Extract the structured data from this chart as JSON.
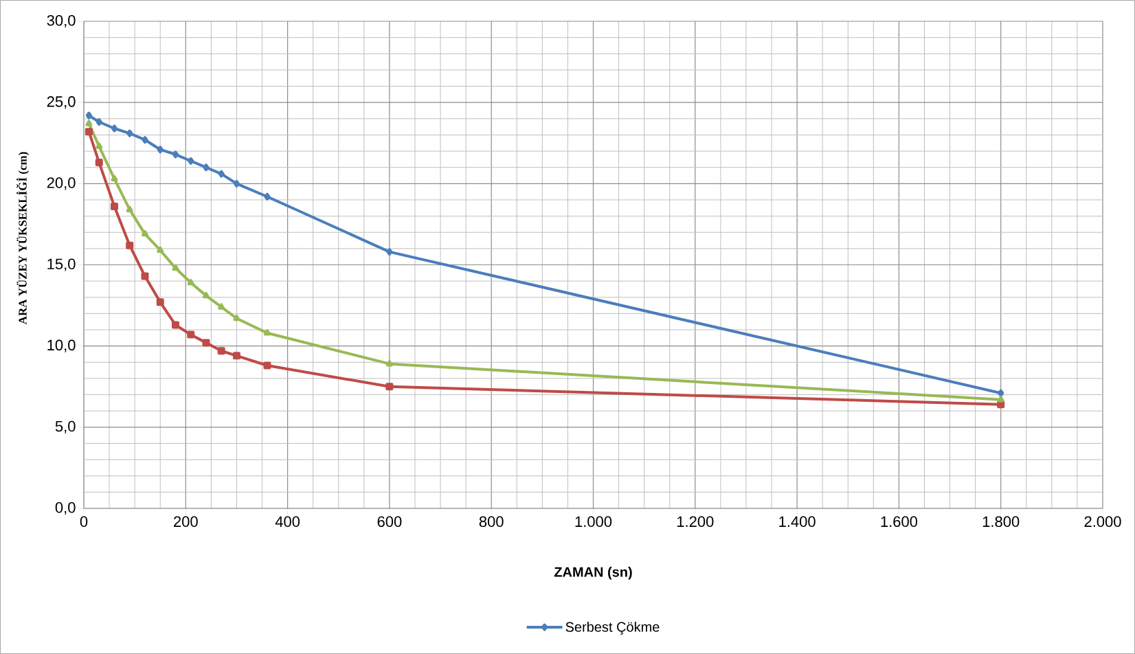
{
  "chart_data": {
    "type": "line",
    "xlabel": "ZAMAN (sn)",
    "ylabel": "ARA YÜZEY YÜKSEKLİĞİ (cm)",
    "xlim": [
      0,
      2000
    ],
    "ylim": [
      0,
      30
    ],
    "xticks": [
      {
        "value": 0,
        "label": "0"
      },
      {
        "value": 200,
        "label": "200"
      },
      {
        "value": 400,
        "label": "400"
      },
      {
        "value": 600,
        "label": "600"
      },
      {
        "value": 800,
        "label": "800"
      },
      {
        "value": 1000,
        "label": "1.000"
      },
      {
        "value": 1200,
        "label": "1.200"
      },
      {
        "value": 1400,
        "label": "1.400"
      },
      {
        "value": 1600,
        "label": "1.600"
      },
      {
        "value": 1800,
        "label": "1.800"
      },
      {
        "value": 2000,
        "label": "2.000"
      }
    ],
    "yticks": [
      {
        "value": 0,
        "label": "0,0"
      },
      {
        "value": 5,
        "label": "5,0"
      },
      {
        "value": 10,
        "label": "10,0"
      },
      {
        "value": 15,
        "label": "15,0"
      },
      {
        "value": 20,
        "label": "20,0"
      },
      {
        "value": 25,
        "label": "25,0"
      },
      {
        "value": 30,
        "label": "30,0"
      }
    ],
    "x": [
      10,
      30,
      60,
      90,
      120,
      150,
      180,
      210,
      240,
      270,
      300,
      360,
      600,
      1800
    ],
    "grid": true,
    "legend": "bottom",
    "line_style": "solid",
    "series": [
      {
        "name": "Serbest Çökme",
        "color": "#4a7ebb",
        "marker": "diamond",
        "values": [
          24.2,
          23.8,
          23.4,
          23.1,
          22.7,
          22.1,
          21.8,
          21.4,
          21.0,
          20.6,
          20.0,
          19.2,
          15.8,
          7.1
        ]
      },
      {
        "color": "#be4b48",
        "marker": "square",
        "values": [
          23.2,
          21.3,
          18.6,
          16.2,
          14.3,
          12.7,
          11.3,
          10.7,
          10.2,
          9.7,
          9.4,
          8.8,
          7.5,
          6.4
        ]
      },
      {
        "color": "#98b954",
        "marker": "triangle",
        "values": [
          23.7,
          22.3,
          20.3,
          18.4,
          16.9,
          15.9,
          14.8,
          13.9,
          13.1,
          12.4,
          11.7,
          10.8,
          8.9,
          6.7
        ]
      }
    ]
  }
}
